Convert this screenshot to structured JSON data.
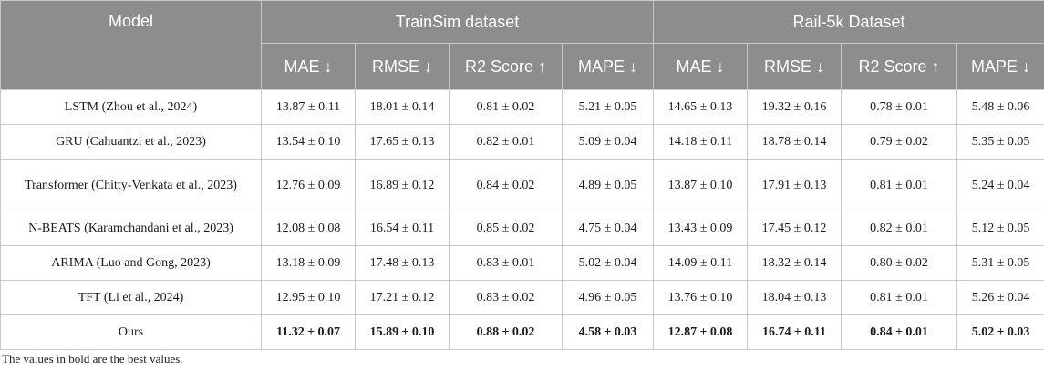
{
  "header": {
    "model": "Model",
    "group1": "TrainSim dataset",
    "group2": "Rail-5k Dataset",
    "metrics": [
      "MAE ↓",
      "RMSE ↓",
      "R2 Score ↑",
      "MAPE ↓",
      "MAE ↓",
      "RMSE ↓",
      "R2 Score ↑",
      "MAPE ↓"
    ]
  },
  "rows": [
    {
      "model": "LSTM (Zhou et al., 2024)",
      "values": [
        "13.87 ± 0.11",
        "18.01 ± 0.14",
        "0.81 ± 0.02",
        "5.21 ± 0.05",
        "14.65 ± 0.13",
        "19.32 ± 0.16",
        "0.78 ± 0.01",
        "5.48 ± 0.06"
      ]
    },
    {
      "model": "GRU (Cahuantzi et al., 2023)",
      "values": [
        "13.54 ± 0.10",
        "17.65 ± 0.13",
        "0.82 ± 0.01",
        "5.09 ± 0.04",
        "14.18 ± 0.11",
        "18.78 ± 0.14",
        "0.79 ± 0.02",
        "5.35 ± 0.05"
      ]
    },
    {
      "model": "Transformer (Chitty-Venkata et al., 2023)",
      "values": [
        "12.76 ± 0.09",
        "16.89 ± 0.12",
        "0.84 ± 0.02",
        "4.89 ± 0.05",
        "13.87 ± 0.10",
        "17.91 ± 0.13",
        "0.81 ± 0.01",
        "5.24 ± 0.04"
      ]
    },
    {
      "model": "N-BEATS (Karamchandani et al., 2023)",
      "values": [
        "12.08 ± 0.08",
        "16.54 ± 0.11",
        "0.85 ± 0.02",
        "4.75 ± 0.04",
        "13.43 ± 0.09",
        "17.45 ± 0.12",
        "0.82 ± 0.01",
        "5.12 ± 0.05"
      ]
    },
    {
      "model": "ARIMA (Luo and Gong, 2023)",
      "values": [
        "13.18 ± 0.09",
        "17.48 ± 0.13",
        "0.83 ± 0.01",
        "5.02 ± 0.04",
        "14.09 ± 0.11",
        "18.32 ± 0.14",
        "0.80 ± 0.02",
        "5.31 ± 0.05"
      ]
    },
    {
      "model": "TFT (Li et al., 2024)",
      "values": [
        "12.95 ± 0.10",
        "17.21 ± 0.12",
        "0.83 ± 0.02",
        "4.96 ± 0.05",
        "13.76 ± 0.10",
        "18.04 ± 0.13",
        "0.81 ± 0.01",
        "5.26 ± 0.04"
      ]
    },
    {
      "model": "Ours",
      "values": [
        "11.32 ± 0.07",
        "15.89 ± 0.10",
        "0.88 ± 0.02",
        "4.58 ± 0.03",
        "12.87 ± 0.08",
        "16.74 ± 0.11",
        "0.84 ± 0.01",
        "5.02 ± 0.03"
      ]
    }
  ],
  "footnote": "The values in bold are the best values.",
  "colors": {
    "header_bg": "#8c8d8d",
    "header_text": "#ffffff",
    "border": "#c8c8c8"
  }
}
